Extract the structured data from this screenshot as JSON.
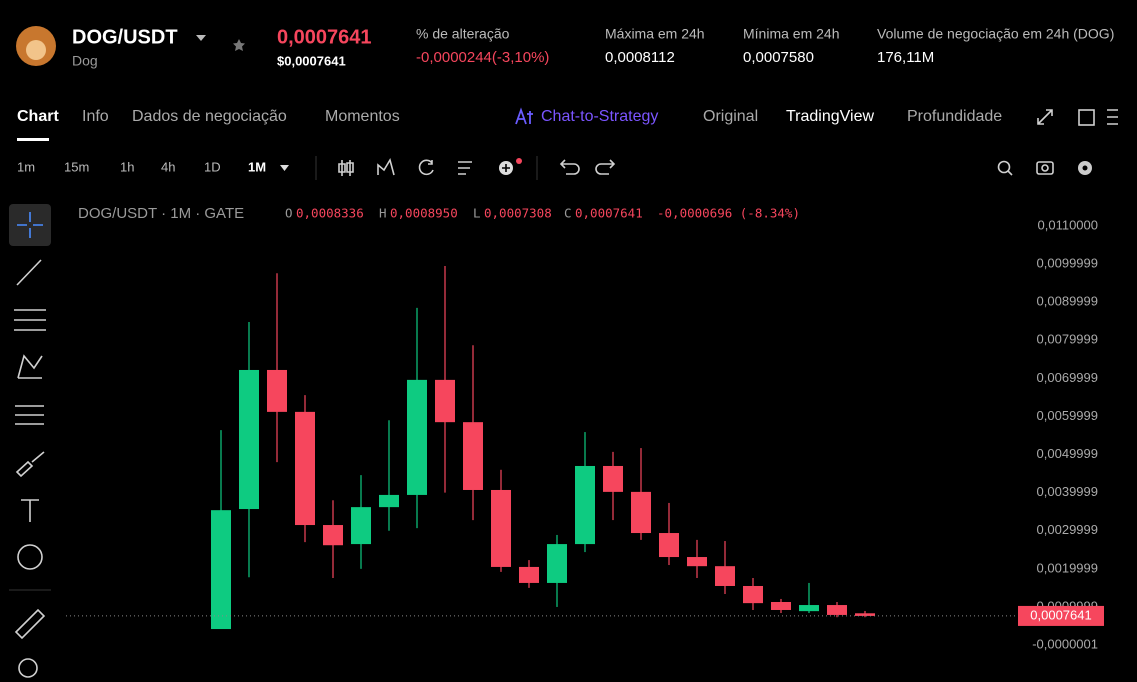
{
  "header": {
    "pair": "DOG/USDT",
    "name": "Dog",
    "price": "0,0007641",
    "price_usd": "$0,0007641",
    "stats": [
      {
        "label": "% de alteração",
        "value": "-0,0000244(-3,10%)"
      },
      {
        "label": "Máxima em 24h",
        "value": "0,0008112"
      },
      {
        "label": "Mínima em 24h",
        "value": "0,0007580"
      },
      {
        "label": "Volume de negociação em 24h (DOG)",
        "value": "176,11M"
      }
    ]
  },
  "tabs": [
    "Chart",
    "Info",
    "Dados de negociação",
    "Momentos"
  ],
  "chat_to_strategy": "Chat-to-Strategy",
  "views": [
    "Original",
    "TradingView",
    "Profundidade"
  ],
  "intervals": [
    "1m",
    "15m",
    "1h",
    "4h",
    "1D",
    "1M"
  ],
  "chart_data": {
    "type": "candlestick",
    "legend": {
      "symbol": "DOG/USDT · 1M · GATE",
      "open_label": "O",
      "open": "0,0008336",
      "high_label": "H",
      "high": "0,0008950",
      "low_label": "L",
      "low": "0,0007308",
      "close_label": "C",
      "close": "0,0007641",
      "change": "-0,0000696 (-8.34%)"
    },
    "open": [
      0.00042,
      0.00357,
      0.00722,
      0.00612,
      0.00315,
      0.00265,
      0.00362,
      0.00394,
      0.00696,
      0.00585,
      0.00407,
      0.00205,
      0.00163,
      0.00265,
      0.0047,
      0.00402,
      0.00294,
      0.00231,
      0.00207,
      0.00155,
      0.00113,
      0.00089,
      0.00105,
      0.0008336
    ],
    "high": [
      0.00564,
      0.00848,
      0.00976,
      0.00656,
      0.0038,
      0.00446,
      0.0059,
      0.00885,
      0.00995,
      0.00787,
      0.0046,
      0.00223,
      0.00289,
      0.00559,
      0.00507,
      0.00517,
      0.00373,
      0.00276,
      0.00273,
      0.00176,
      0.00121,
      0.00163,
      0.00113,
      0.000895
    ],
    "low": [
      0.00042,
      0.00178,
      0.0048,
      0.0027,
      0.00176,
      0.002,
      0.003,
      0.00307,
      0.004,
      0.00328,
      0.00192,
      0.0015,
      0.001,
      0.00244,
      0.00328,
      0.00276,
      0.0021,
      0.00176,
      0.00134,
      0.00092,
      0.00084,
      0.00084,
      0.00073,
      0.0007308
    ],
    "close": [
      0.00354,
      0.00722,
      0.00612,
      0.00315,
      0.00262,
      0.00362,
      0.00394,
      0.00696,
      0.00585,
      0.00407,
      0.00205,
      0.00163,
      0.00265,
      0.0047,
      0.00402,
      0.00294,
      0.00231,
      0.00207,
      0.00155,
      0.0011,
      0.00092,
      0.00105,
      0.00079,
      0.0007641
    ],
    "up_color": "#0ecb81",
    "down_color": "#f6465d",
    "ylim": [
      -0.00097,
      0.01155
    ],
    "yticks": [
      {
        "value": 0.011,
        "label": "0,0110000"
      },
      {
        "value": 0.0099999,
        "label": "0,0099999"
      },
      {
        "value": 0.0089999,
        "label": "0,0089999"
      },
      {
        "value": 0.0079999,
        "label": "0,0079999"
      },
      {
        "value": 0.0069999,
        "label": "0,0069999"
      },
      {
        "value": 0.0059999,
        "label": "0,0059999"
      },
      {
        "value": 0.0049999,
        "label": "0,0049999"
      },
      {
        "value": 0.0039999,
        "label": "0,0039999"
      },
      {
        "value": 0.0029999,
        "label": "0,0029999"
      },
      {
        "value": 0.0019999,
        "label": "0,0019999"
      },
      {
        "value": 0.0009999,
        "label": "0,0009999"
      },
      {
        "value": -1e-07,
        "label": "-0,0000001"
      }
    ],
    "last_price": {
      "value": 0.0007641,
      "label": "0,0007641"
    }
  }
}
